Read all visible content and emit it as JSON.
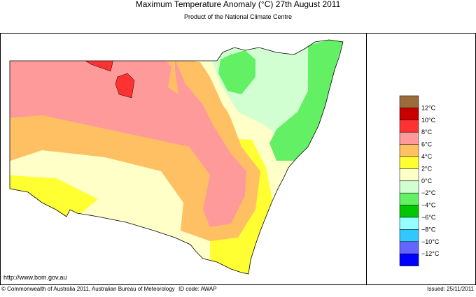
{
  "header": {
    "title": "Maximum Temperature Anomaly (°C)  27th August 2011",
    "subtitle": "Product of the National Climate Centre"
  },
  "legend": {
    "colors": [
      "#9c6b3c",
      "#c80000",
      "#ff3232",
      "#ff9a9a",
      "#ffc064",
      "#ffff32",
      "#ffffc8",
      "#d2ffd2",
      "#64f064",
      "#00c800",
      "#96ffff",
      "#32c8ff",
      "#6464ff",
      "#0000ff"
    ],
    "labels": [
      "12°C",
      "10°C",
      "8°C",
      "6°C",
      "4°C",
      "2°C",
      "0°C",
      "−2°C",
      "−4°C",
      "−6°C",
      "−8°C",
      "−10°C",
      "−12°C"
    ]
  },
  "footer": {
    "url": "http://www.bom.gov.au",
    "copyright": "© Commonwealth of Australia 2011, Australian Bureau of Meteorology",
    "id_code": "ID code: AWAP",
    "issued": "Issued: 25/11/2011"
  }
}
